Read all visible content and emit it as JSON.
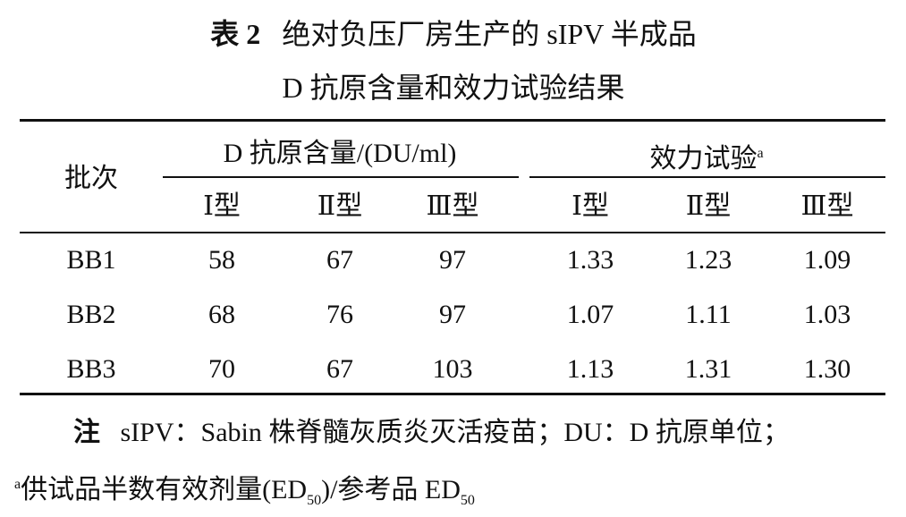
{
  "title": {
    "label": "表 2",
    "line1": "绝对负压厂房生产的 sIPV 半成品",
    "line2": "D 抗原含量和效力试验结果"
  },
  "table": {
    "header": {
      "batch": "批次",
      "group1": "D 抗原含量/(DU/ml)",
      "group2": "效力试验",
      "group2_sup": "a",
      "subheaders": [
        "Ⅰ型",
        "Ⅱ型",
        "Ⅲ型",
        "Ⅰ型",
        "Ⅱ型",
        "Ⅲ型"
      ]
    },
    "rows": [
      [
        "BB1",
        "58",
        "67",
        "97",
        "1.33",
        "1.23",
        "1.09"
      ],
      [
        "BB2",
        "68",
        "76",
        "97",
        "1.07",
        "1.11",
        "1.03"
      ],
      [
        "BB3",
        "70",
        "67",
        "103",
        "1.13",
        "1.31",
        "1.30"
      ]
    ]
  },
  "note": {
    "label": "注",
    "line1": "sIPV：Sabin 株脊髓灰质炎灭活疫苗；DU：D 抗原单位；",
    "line2_sup": "a",
    "line2_a": "供试品半数有效剂量(ED",
    "line2_sub1": "50",
    "line2_b": ")/参考品 ED",
    "line2_sub2": "50"
  }
}
